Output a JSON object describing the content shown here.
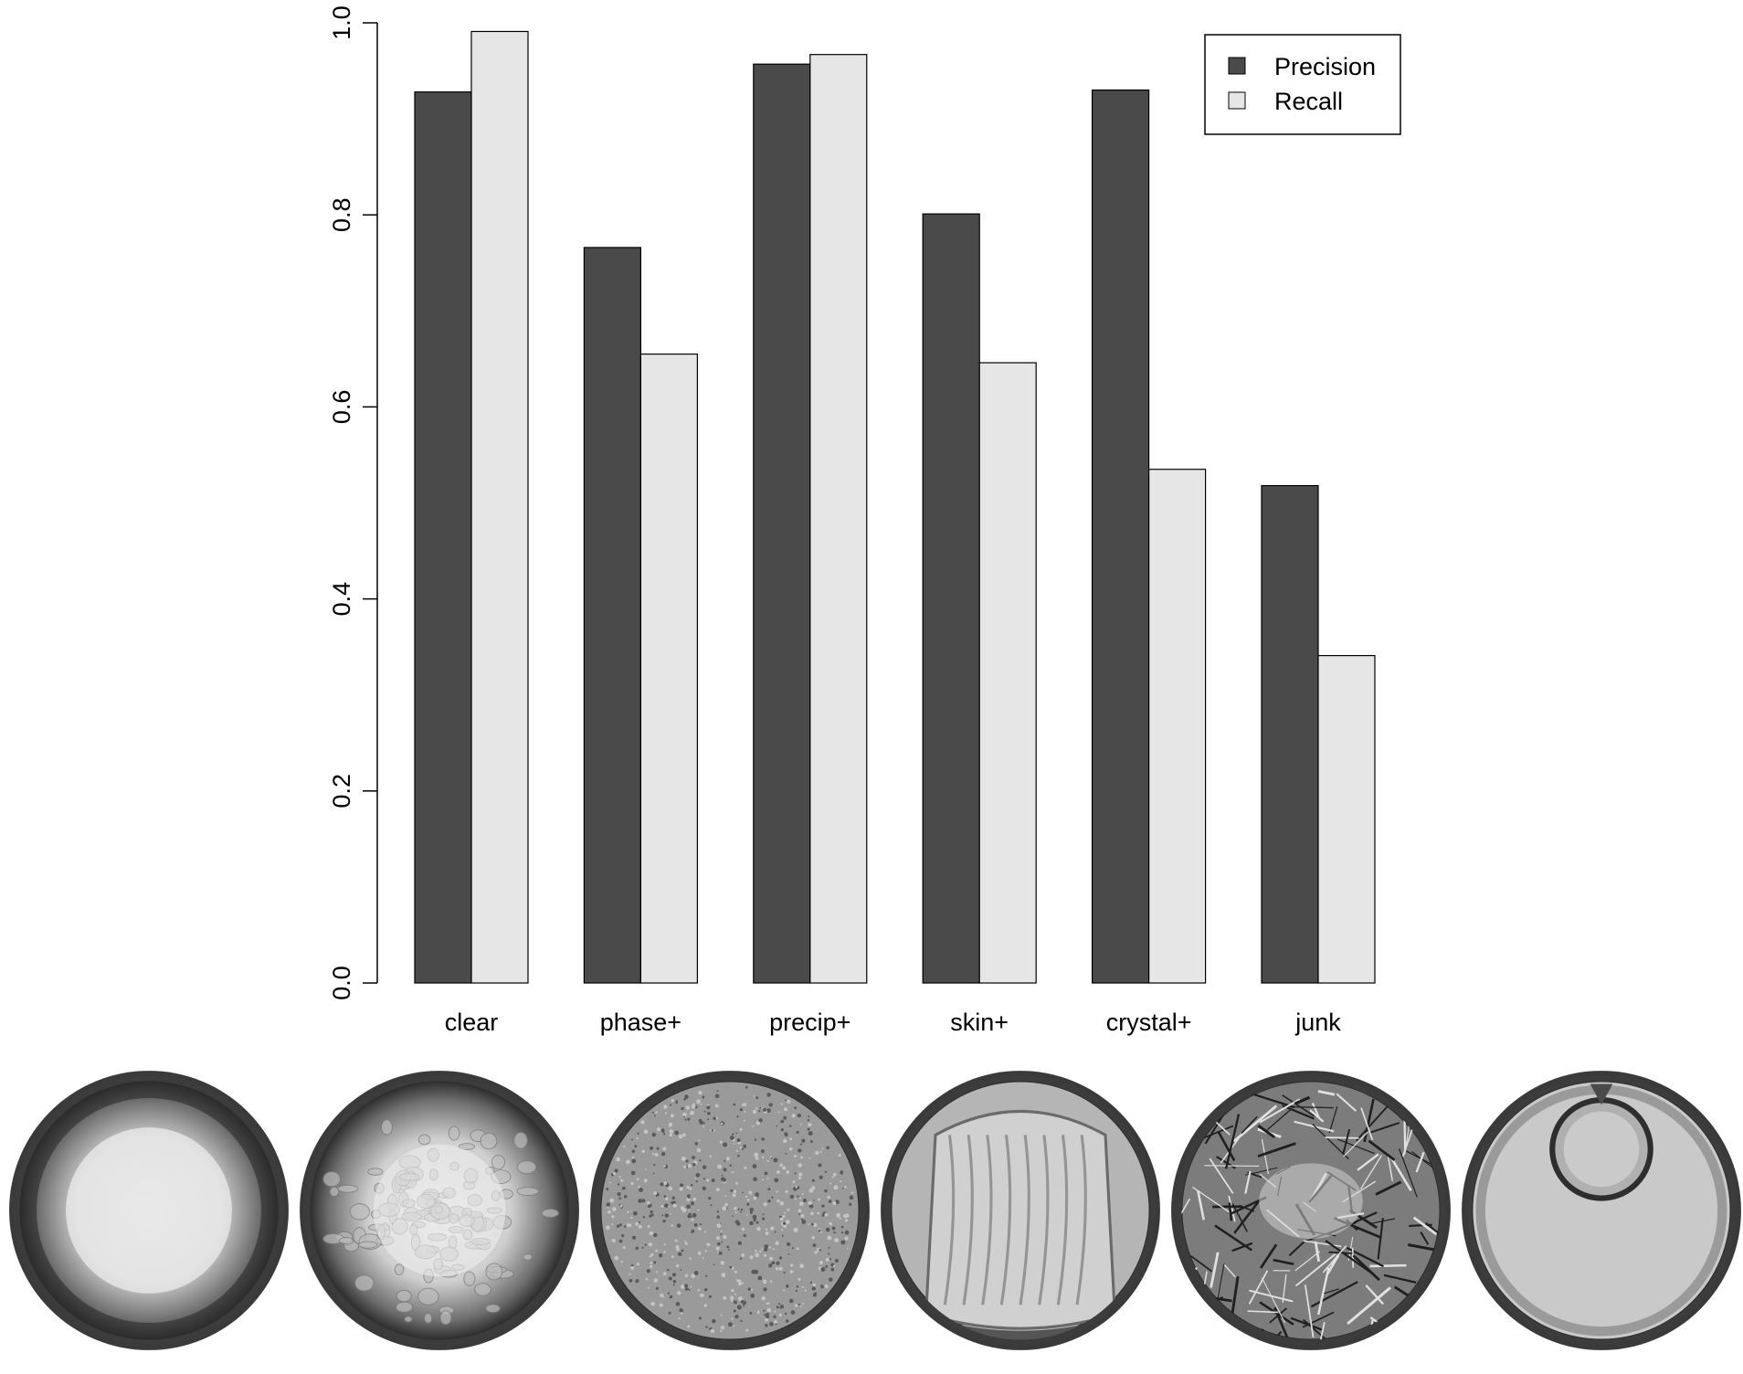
{
  "chart_data": {
    "type": "bar",
    "categories": [
      "clear",
      "phase+",
      "precip+",
      "skin+",
      "crystal+",
      "junk"
    ],
    "series": [
      {
        "name": "Precision",
        "values": [
          0.928,
          0.766,
          0.957,
          0.801,
          0.93,
          0.518
        ],
        "color": "#4a4a4a"
      },
      {
        "name": "Recall",
        "values": [
          0.991,
          0.655,
          0.967,
          0.646,
          0.535,
          0.341
        ],
        "color": "#e6e6e6"
      }
    ],
    "ylim": [
      0,
      1
    ],
    "yticks": [
      0.0,
      0.2,
      0.4,
      0.6,
      0.8,
      1.0
    ],
    "ytick_labels": [
      "0.0",
      "0.2",
      "0.4",
      "0.6",
      "0.8",
      "1.0"
    ],
    "grid": false,
    "legend_position": "top-right",
    "title": "",
    "xlabel": "",
    "ylabel": ""
  },
  "images": [
    {
      "name": "clear-drop-image",
      "kind": "clear"
    },
    {
      "name": "phase-drop-image",
      "kind": "phase"
    },
    {
      "name": "precip-drop-image",
      "kind": "precip"
    },
    {
      "name": "skin-drop-image",
      "kind": "skin"
    },
    {
      "name": "crystal-drop-image",
      "kind": "crystal"
    },
    {
      "name": "junk-drop-image",
      "kind": "junk"
    }
  ]
}
